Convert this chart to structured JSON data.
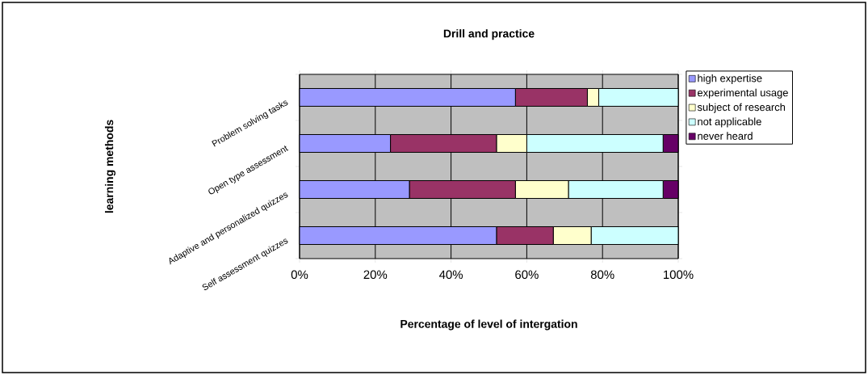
{
  "chart_data": {
    "type": "bar",
    "orientation": "horizontal",
    "stacked": true,
    "title": "Drill and practice",
    "xlabel": "Percentage of level of intergation",
    "ylabel": "learning methods",
    "categories": [
      "Problem solving tasks",
      "Open type assessment",
      "Adaptive and personalized quizzes",
      "Self assessment quizzes"
    ],
    "series": [
      {
        "name": "high expertise",
        "color": "#9999ff",
        "values": [
          57,
          24,
          29,
          52
        ]
      },
      {
        "name": "experimental usage",
        "color": "#993366",
        "values": [
          19,
          28,
          28,
          15
        ]
      },
      {
        "name": "subject of research",
        "color": "#ffffcc",
        "values": [
          3,
          8,
          14,
          10
        ]
      },
      {
        "name": "not applicable",
        "color": "#ccffff",
        "values": [
          21,
          36,
          25,
          23
        ]
      },
      {
        "name": "never heard",
        "color": "#660066",
        "values": [
          0,
          4,
          4,
          0
        ]
      }
    ],
    "xlim": [
      0,
      100
    ],
    "xticks": [
      {
        "value": 0,
        "label": "0%"
      },
      {
        "value": 20,
        "label": "20%"
      },
      {
        "value": 40,
        "label": "40%"
      },
      {
        "value": 60,
        "label": "60%"
      },
      {
        "value": 80,
        "label": "80%"
      },
      {
        "value": 100,
        "label": "100%"
      }
    ],
    "grid": "x",
    "legend": "right"
  }
}
